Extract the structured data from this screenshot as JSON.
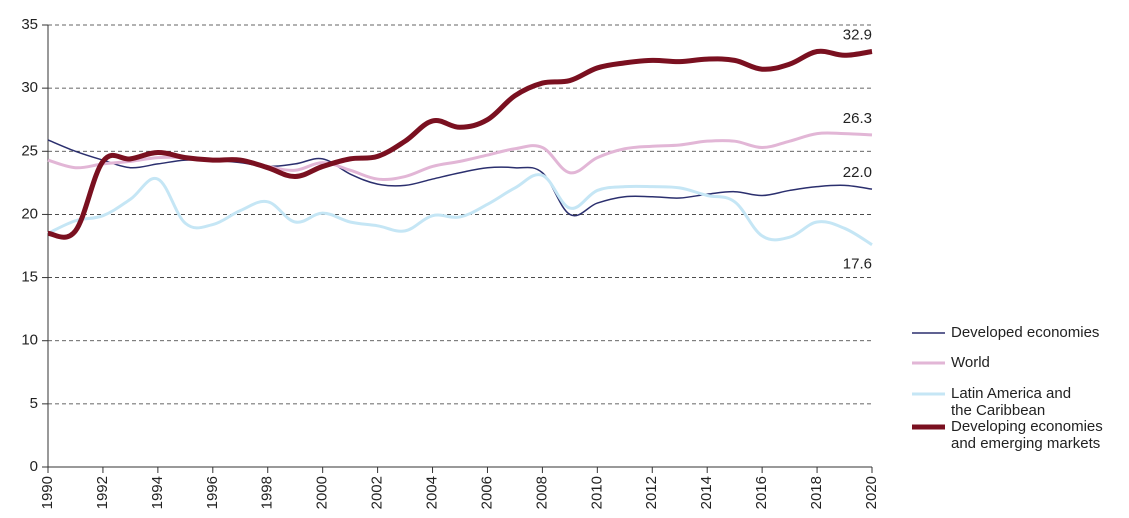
{
  "chart_data": {
    "type": "line",
    "x": [
      1990,
      1991,
      1992,
      1993,
      1994,
      1995,
      1996,
      1997,
      1998,
      1999,
      2000,
      2001,
      2002,
      2003,
      2004,
      2005,
      2006,
      2007,
      2008,
      2009,
      2010,
      2011,
      2012,
      2013,
      2014,
      2015,
      2016,
      2017,
      2018,
      2019,
      2020
    ],
    "xlim": [
      1990,
      2020
    ],
    "xticks": [
      1990,
      1992,
      1994,
      1996,
      1998,
      2000,
      2002,
      2004,
      2006,
      2008,
      2010,
      2012,
      2014,
      2016,
      2018,
      2020
    ],
    "ylim": [
      0,
      35
    ],
    "yticks": [
      0,
      5,
      10,
      15,
      20,
      25,
      30,
      35
    ],
    "grid": true,
    "legend": "lower right",
    "series": [
      {
        "name": "Developed economies",
        "color": "#2b2f6e",
        "width": 1.5,
        "values": [
          25.9,
          25.0,
          24.3,
          23.7,
          24.0,
          24.3,
          24.3,
          24.1,
          23.8,
          24.0,
          24.4,
          23.2,
          22.4,
          22.3,
          22.8,
          23.3,
          23.7,
          23.7,
          23.3,
          20.0,
          20.9,
          21.4,
          21.4,
          21.3,
          21.6,
          21.8,
          21.5,
          21.9,
          22.2,
          22.3,
          22.0
        ],
        "value_labels": [
          null,
          null,
          null,
          null,
          null,
          null,
          null,
          null,
          null,
          null,
          null,
          null,
          null,
          null,
          null,
          null,
          null,
          null,
          null,
          null,
          null,
          null,
          null,
          null,
          null,
          null,
          null,
          null,
          null,
          null,
          "22.0"
        ]
      },
      {
        "name": "World",
        "color": "#e2b6d6",
        "width": 3,
        "values": [
          24.3,
          23.7,
          24.0,
          24.2,
          24.5,
          24.5,
          24.3,
          24.3,
          23.8,
          23.5,
          24.1,
          23.5,
          22.8,
          23.0,
          23.8,
          24.2,
          24.7,
          25.2,
          25.3,
          23.3,
          24.5,
          25.2,
          25.4,
          25.5,
          25.8,
          25.8,
          25.3,
          25.8,
          26.4,
          26.4,
          26.3
        ],
        "value_labels": [
          null,
          null,
          null,
          null,
          null,
          null,
          null,
          null,
          null,
          null,
          null,
          null,
          null,
          null,
          null,
          null,
          null,
          null,
          null,
          null,
          null,
          null,
          null,
          null,
          null,
          null,
          null,
          null,
          null,
          null,
          "26.3"
        ]
      },
      {
        "name": "Latin America and\nthe Caribbean",
        "color": "#c5e6f5",
        "width": 3,
        "values": [
          18.5,
          19.5,
          19.9,
          21.2,
          22.8,
          19.3,
          19.2,
          20.3,
          21.0,
          19.4,
          20.1,
          19.4,
          19.1,
          18.7,
          19.9,
          19.8,
          20.8,
          22.1,
          23.1,
          20.5,
          21.9,
          22.2,
          22.2,
          22.1,
          21.5,
          21.0,
          18.3,
          18.2,
          19.4,
          18.9,
          17.6
        ],
        "value_labels": [
          null,
          null,
          null,
          null,
          null,
          null,
          null,
          null,
          null,
          null,
          null,
          null,
          null,
          null,
          null,
          null,
          null,
          null,
          null,
          null,
          null,
          null,
          null,
          null,
          null,
          null,
          null,
          null,
          null,
          null,
          "17.6"
        ]
      },
      {
        "name": "Developing economies\nand emerging markets",
        "color": "#7a1020",
        "width": 5,
        "values": [
          18.5,
          18.7,
          24.2,
          24.4,
          24.9,
          24.5,
          24.3,
          24.3,
          23.7,
          23.0,
          23.8,
          24.4,
          24.6,
          25.8,
          27.4,
          26.9,
          27.5,
          29.4,
          30.4,
          30.6,
          31.6,
          32.0,
          32.2,
          32.1,
          32.3,
          32.2,
          31.5,
          31.9,
          32.9,
          32.6,
          32.9
        ],
        "value_labels": [
          null,
          null,
          null,
          null,
          null,
          null,
          null,
          null,
          null,
          null,
          null,
          null,
          null,
          null,
          null,
          null,
          null,
          null,
          null,
          null,
          null,
          null,
          null,
          null,
          null,
          null,
          null,
          null,
          null,
          null,
          "32.9"
        ]
      }
    ]
  }
}
